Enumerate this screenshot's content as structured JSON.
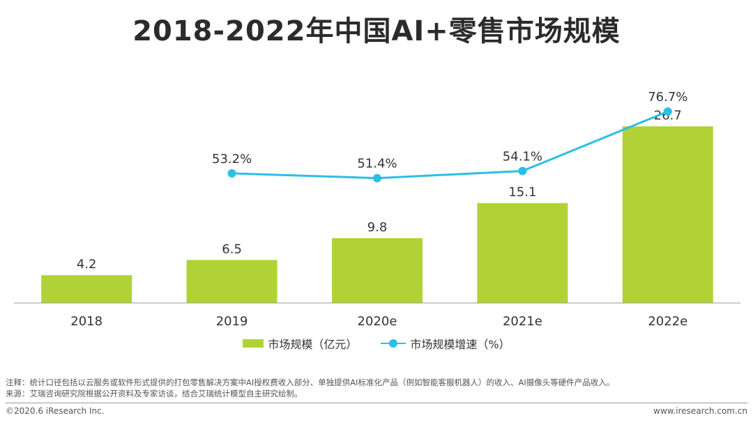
{
  "title": "2018-2022年中国AI+零售市场规模",
  "colors": {
    "bar": "#b0d236",
    "line": "#2bbfe6",
    "axis": "#999999",
    "text": "#333333"
  },
  "chart_data": {
    "type": "bar",
    "categories": [
      "2018",
      "2019",
      "2020e",
      "2021e",
      "2022e"
    ],
    "series": [
      {
        "name": "市场规模（亿元）",
        "type": "bar",
        "values": [
          4.2,
          6.5,
          9.8,
          15.1,
          26.7
        ],
        "labels": [
          "4.2",
          "6.5",
          "9.8",
          "15.1",
          "26.7"
        ]
      },
      {
        "name": "市场规模增速（%）",
        "type": "line",
        "values": [
          null,
          53.2,
          51.4,
          54.1,
          76.7
        ],
        "labels": [
          "",
          "53.2%",
          "51.4%",
          "54.1%",
          "76.7%"
        ]
      }
    ],
    "ylim": [
      0,
      30
    ],
    "y2lim": [
      0,
      100
    ],
    "grid": false,
    "legend": "bottom-center"
  },
  "legend": {
    "bar_label": "市场规模（亿元）",
    "line_label": "市场规模增速（%）"
  },
  "footnote": {
    "note": "注释：统计口径包括以云服务或软件形式提供的打包零售解决方案中AI授权费收入部分、单独提供AI标准化产品（例如智能客服机器人）的收入、AI摄像头等硬件产品收入。",
    "source": "来源：艾瑞咨询研究院根据公开资料及专家访谈，结合艾瑞统计模型自主研究绘制。"
  },
  "footer": {
    "copyright": "©2020.6 iResearch Inc.",
    "website": "www.iresearch.com.cn"
  }
}
